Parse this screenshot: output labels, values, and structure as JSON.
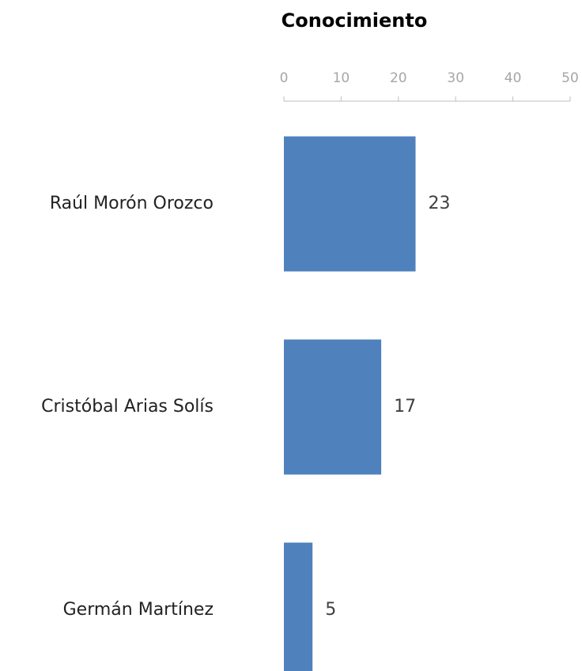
{
  "chart_data": {
    "type": "bar",
    "orientation": "horizontal",
    "title": "Conocimiento",
    "categories": [
      "Raúl Morón Orozco",
      "Cristóbal Arias Solís",
      "Germán Martínez"
    ],
    "values": [
      23,
      17,
      5
    ],
    "color": "#4f81bd",
    "xlim": [
      0,
      50
    ],
    "xticks": [
      0,
      10,
      20,
      30,
      40,
      50
    ]
  }
}
